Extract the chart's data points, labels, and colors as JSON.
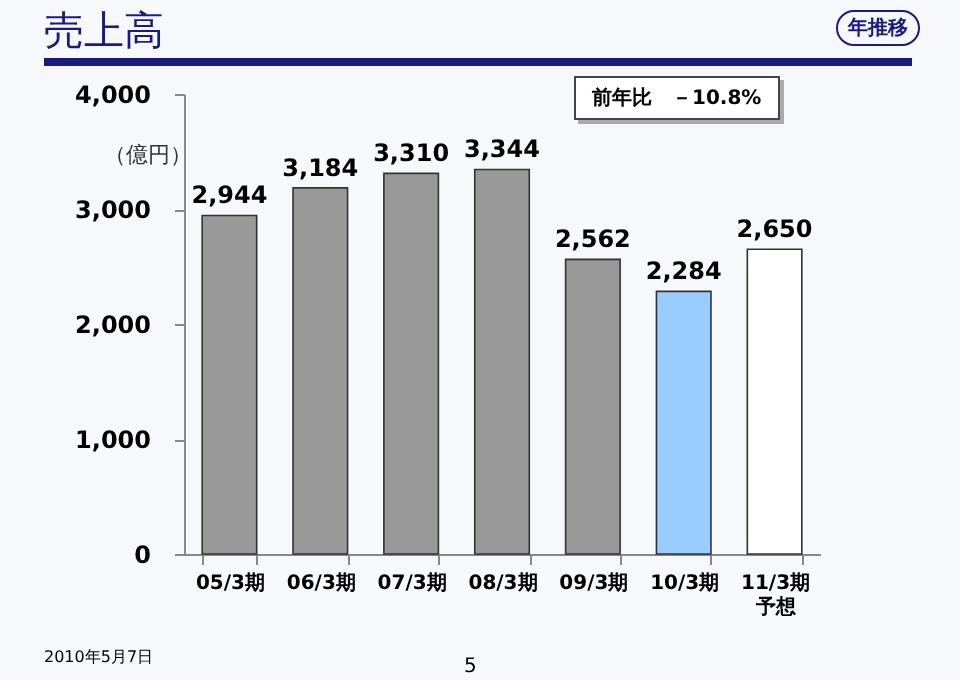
{
  "chart_data": {
    "type": "bar",
    "title": "売上高",
    "ylabel": "（億円）",
    "categories": [
      "05/3期",
      "06/3期",
      "07/3期",
      "08/3期",
      "09/3期",
      "10/3期",
      "11/3期予想"
    ],
    "values": [
      2944,
      3184,
      3310,
      3344,
      2562,
      2284,
      2650
    ],
    "colors": [
      "#999999",
      "#999999",
      "#999999",
      "#999999",
      "#999999",
      "#99ccff",
      "#ffffff"
    ],
    "value_labels": [
      "2,944",
      "3,184",
      "3,310",
      "3,344",
      "2,562",
      "2,284",
      "2,650"
    ],
    "ylim": [
      0,
      4000
    ],
    "yticks": [
      0,
      {
        "value": 1000,
        "label": "1,000"
      },
      {
        "value": 2000,
        "label": "2,000"
      },
      {
        "value": 3000,
        "label": "3,000"
      },
      {
        "value": 4000,
        "label": "4,000"
      }
    ],
    "grid": false,
    "annotations": [
      "年推移",
      "前年比　－10.8%",
      "2010年5月7日",
      "5"
    ]
  }
}
